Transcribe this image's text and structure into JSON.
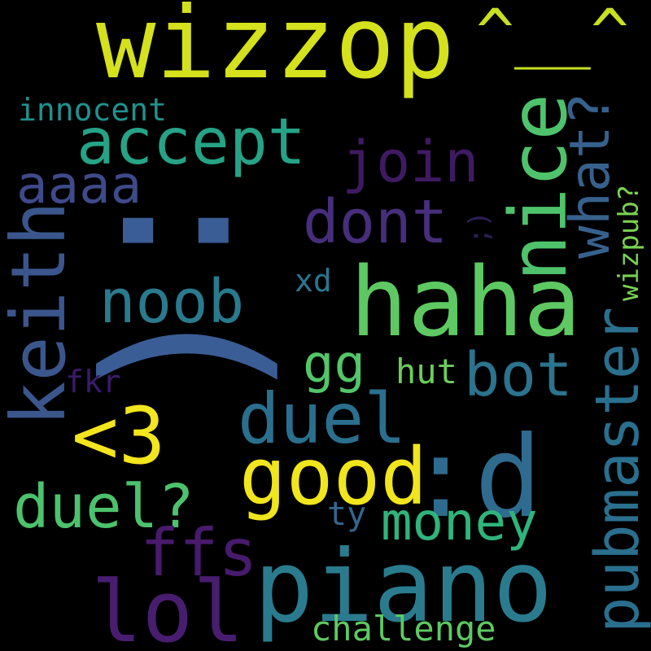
{
  "words": {
    "w_wizzop": {
      "text": "wizzop",
      "color": "#d4e11c"
    },
    "w_caret": {
      "text": "^__^",
      "color": "#c7e11f"
    },
    "w_sadface": {
      "text": ":(",
      "color": "#3b5d96"
    },
    "w_haha": {
      "text": "haha",
      "color": "#5ec962"
    },
    "w_d": {
      "text": ":d",
      "color": "#2f6b8e"
    },
    "w_piano": {
      "text": "piano",
      "color": "#2a7b8e"
    },
    "w_accept": {
      "text": "accept",
      "color": "#26a386"
    },
    "w_nice": {
      "text": "nice",
      "color": "#4ec36b"
    },
    "w_keith": {
      "text": "keith",
      "color": "#3a568c"
    },
    "w_noob": {
      "text": "noob",
      "color": "#2a7a8e"
    },
    "w_good": {
      "text": "good",
      "color": "#f1e51d"
    },
    "w_duel": {
      "text": "duel",
      "color": "#2a6f8e"
    },
    "w_lt3": {
      "text": "<3",
      "color": "#f3e51e"
    },
    "w_lol": {
      "text": "lol",
      "color": "#481d6f"
    },
    "w_dont": {
      "text": "dont",
      "color": "#472e7c"
    },
    "w_join": {
      "text": "join",
      "color": "#3f1a63"
    },
    "w_pubmaster": {
      "text": "pubmaster",
      "color": "#2a6f8e"
    },
    "w_what": {
      "text": "what?",
      "color": "#37618d"
    },
    "w_bot": {
      "text": "bot",
      "color": "#2b738e"
    },
    "w_aaaa": {
      "text": "aaaa",
      "color": "#3e4a89"
    },
    "w_duelq": {
      "text": "duel?",
      "color": "#4cc26c"
    },
    "w_ffs": {
      "text": "ffs",
      "color": "#481a6c"
    },
    "w_money": {
      "text": "money",
      "color": "#2fb47c"
    },
    "w_gg": {
      "text": "gg",
      "color": "#54c568"
    },
    "w_innocent": {
      "text": "innocent",
      "color": "#21918c"
    },
    "w_challenge": {
      "text": "challenge",
      "color": "#5ec962"
    },
    "w_wizpub": {
      "text": "wizpub?",
      "color": "#7ad151"
    },
    "w_hut": {
      "text": "hut",
      "color": "#6ccd5a"
    },
    "w_fkr": {
      "text": "fkr",
      "color": "#3b1b6a"
    },
    "w_xd": {
      "text": "xd",
      "color": "#2a768e"
    },
    "w_ty": {
      "text": "ty",
      "color": "#31678e"
    },
    "w_smile": {
      "text": ";)",
      "color": "#2d1e55"
    }
  }
}
